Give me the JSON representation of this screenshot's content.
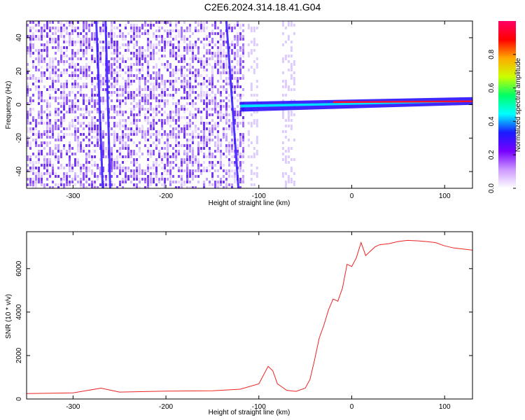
{
  "title": "C2E6.2024.314.18.41.G04",
  "chart_data": [
    {
      "type": "heatmap",
      "xlabel": "Height of straight line (km)",
      "ylabel": "Frequency (Hz)",
      "xlim": [
        -350,
        130
      ],
      "ylim": [
        -50,
        50
      ],
      "xticks": [
        -300,
        -200,
        -100,
        0,
        100
      ],
      "yticks": [
        -40,
        -20,
        0,
        20,
        40
      ],
      "colorbar": {
        "label": "Normalized spectral amplitude",
        "range": [
          0,
          1
        ],
        "ticks": [
          "0.0",
          "0.2",
          "0.4",
          "0.6",
          "0.8"
        ],
        "colormap": [
          "#ffffff",
          "#cc99ff",
          "#7700ff",
          "#1a1aff",
          "#00ffff",
          "#00ff66",
          "#ccff00",
          "#ffaa00",
          "#ff0000",
          "#ff0066"
        ]
      },
      "features": {
        "noise_region_x": [
          -350,
          -115
        ],
        "strong_line": {
          "x_start": -120,
          "x_end": 130,
          "frequency_start": 0,
          "frequency_end": 2
        }
      }
    },
    {
      "type": "line",
      "xlabel": "Height of straight line (km)",
      "ylabel": "SNR (10 * v/v)",
      "xlim": [
        -350,
        130
      ],
      "ylim": [
        0,
        7700
      ],
      "xticks": [
        -300,
        -200,
        -100,
        0,
        100
      ],
      "yticks": [
        0,
        2000,
        4000,
        6000
      ],
      "color": "#ee2222",
      "series": [
        {
          "x": [
            -350,
            -300,
            -270,
            -250,
            -200,
            -150,
            -120,
            -100,
            -95,
            -90,
            -85,
            -80,
            -75,
            -70,
            -60,
            -50,
            -45,
            -40,
            -35,
            -30,
            -25,
            -20,
            -15,
            -10,
            -5,
            0,
            5,
            10,
            15,
            20,
            25,
            30,
            40,
            50,
            60,
            70,
            80,
            90,
            100,
            110,
            120,
            130
          ],
          "values": [
            250,
            280,
            500,
            320,
            360,
            380,
            450,
            700,
            1100,
            1500,
            1300,
            700,
            550,
            400,
            350,
            500,
            900,
            1800,
            2800,
            3400,
            4100,
            4600,
            4500,
            5100,
            6200,
            6100,
            6500,
            7200,
            6600,
            6800,
            7000,
            7100,
            7150,
            7250,
            7300,
            7280,
            7250,
            7200,
            7050,
            6950,
            6900,
            6850
          ]
        }
      ]
    }
  ]
}
